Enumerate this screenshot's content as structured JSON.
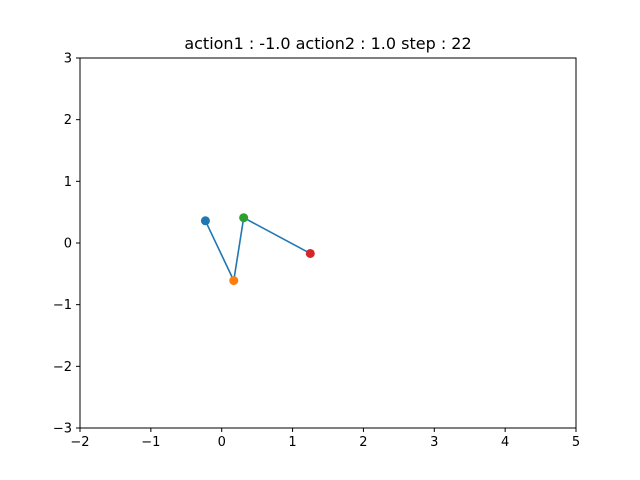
{
  "chart_data": {
    "type": "line",
    "title": "action1 : -1.0 action2 : 1.0 step : 22",
    "xlabel": "",
    "ylabel": "",
    "xlim": [
      -2,
      5
    ],
    "ylim": [
      -3,
      3
    ],
    "xticks": [
      -2,
      -1,
      0,
      1,
      2,
      3,
      4,
      5
    ],
    "yticks": [
      -3,
      -2,
      -1,
      0,
      1,
      2,
      3
    ],
    "xtick_labels": [
      "−2",
      "−1",
      "0",
      "1",
      "2",
      "3",
      "4",
      "5"
    ],
    "ytick_labels": [
      "−3",
      "−2",
      "−1",
      "0",
      "1",
      "2",
      "3"
    ],
    "grid": false,
    "legend": "none",
    "line": {
      "color": "#1f77b4",
      "x": [
        -0.23,
        0.17,
        0.31,
        1.25
      ],
      "y": [
        0.36,
        -0.61,
        0.41,
        -0.17
      ]
    },
    "points": [
      {
        "x": -0.23,
        "y": 0.36,
        "color": "#1f77b4"
      },
      {
        "x": 0.17,
        "y": -0.61,
        "color": "#ff7f0e"
      },
      {
        "x": 0.31,
        "y": 0.41,
        "color": "#2ca02c"
      },
      {
        "x": 1.25,
        "y": -0.17,
        "color": "#d62728"
      }
    ]
  }
}
